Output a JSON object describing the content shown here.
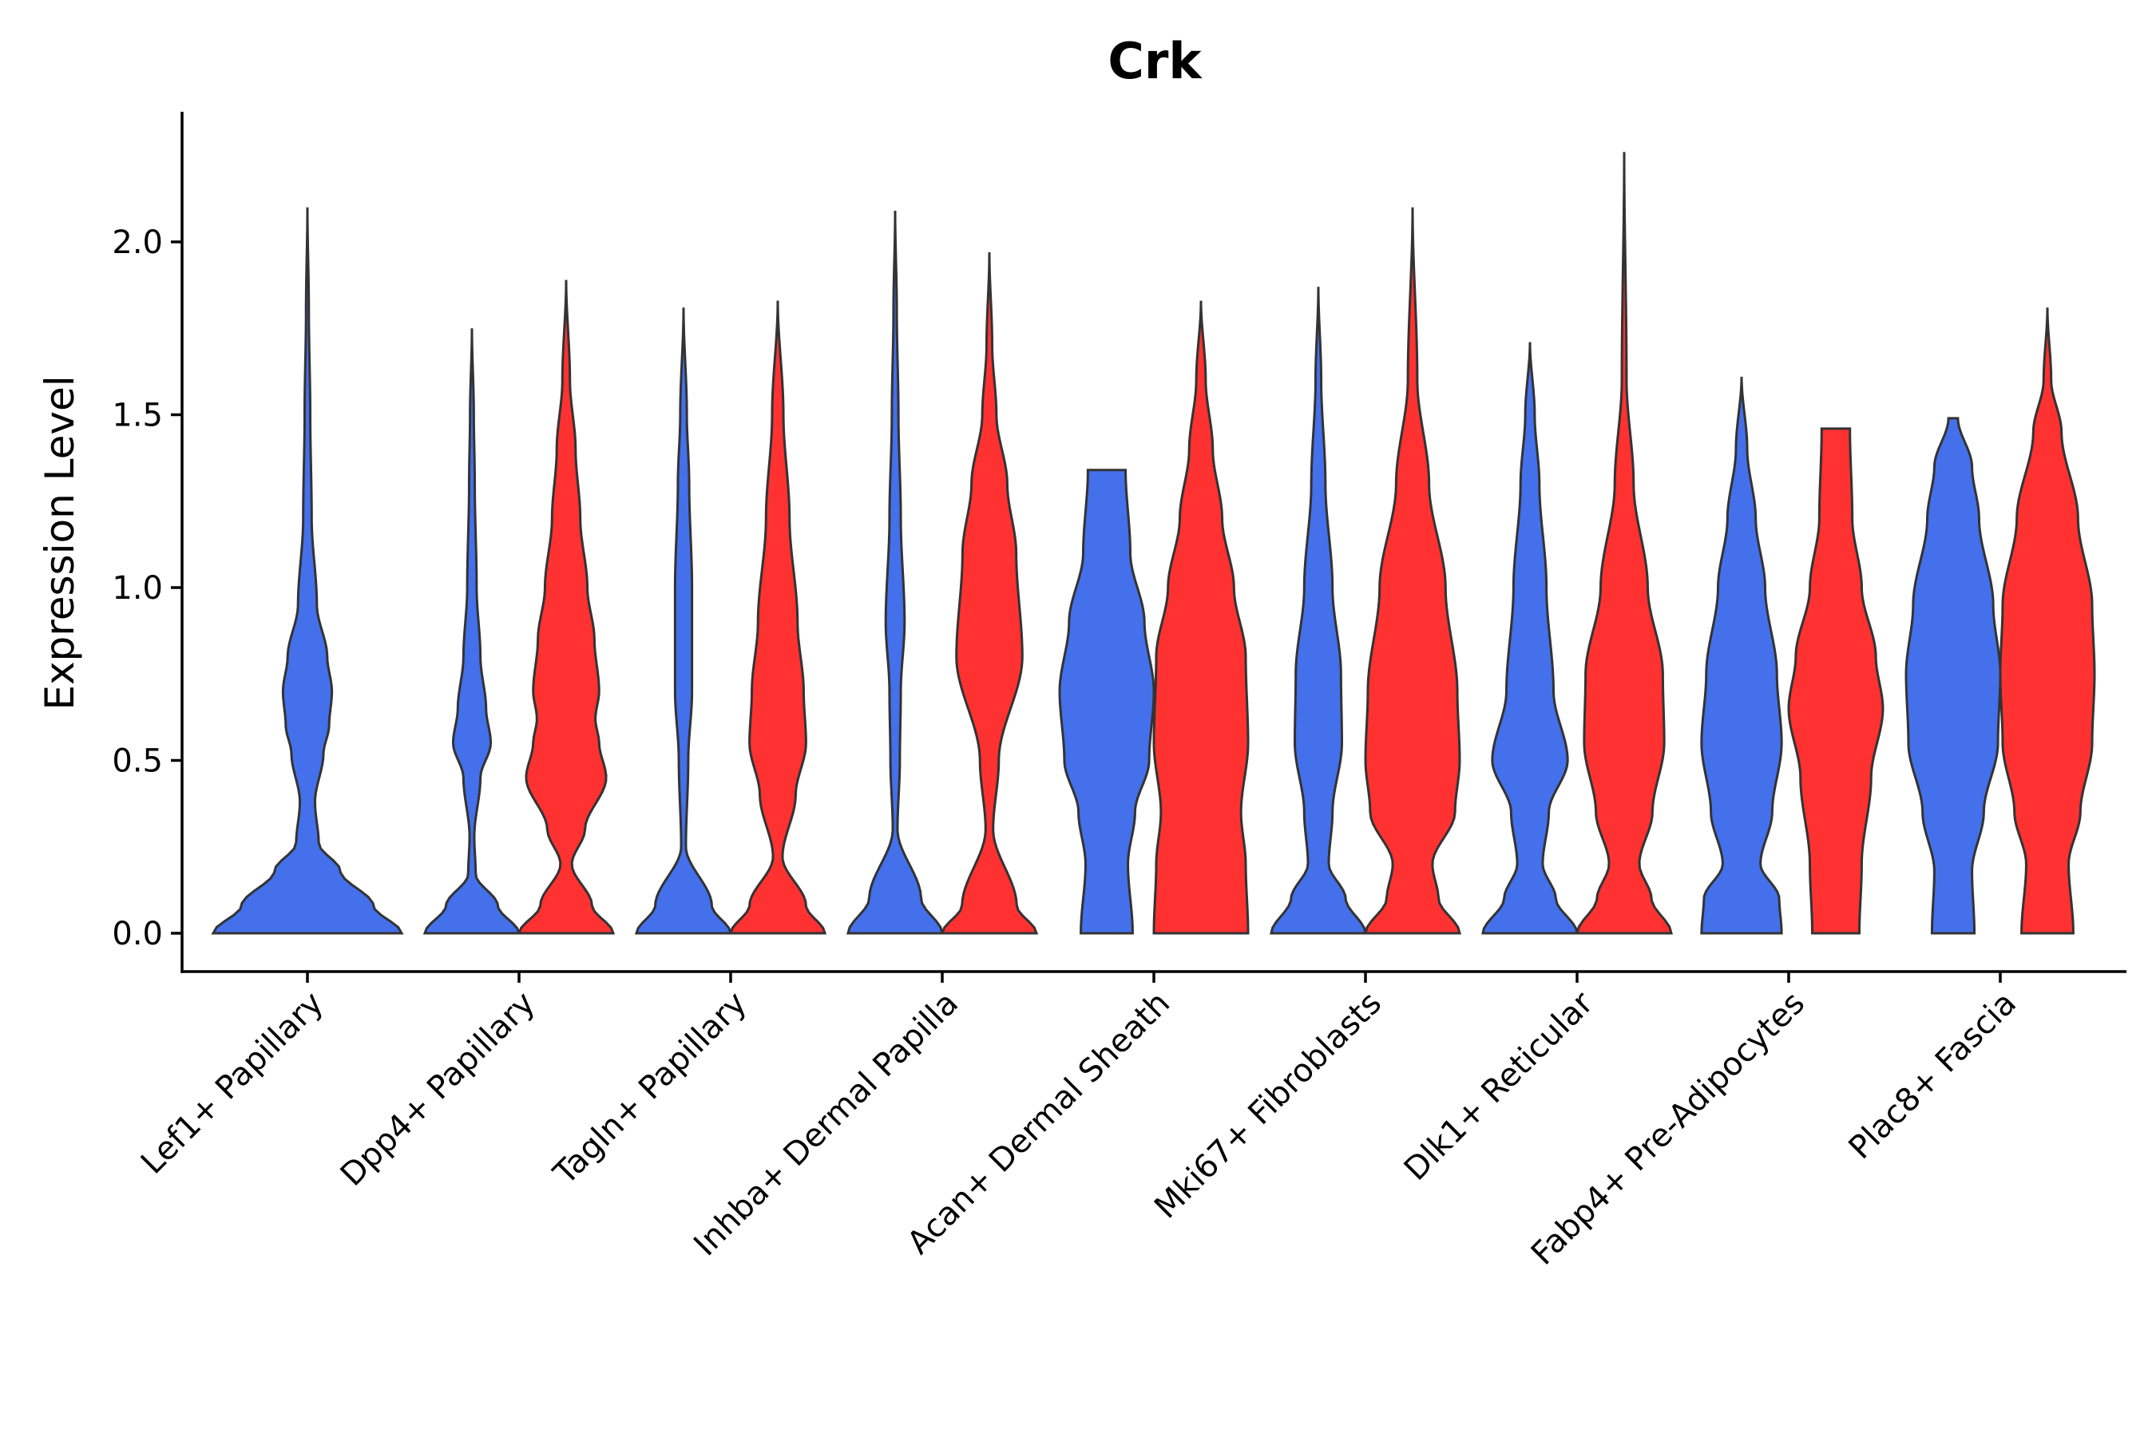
{
  "chart_data": {
    "type": "violin",
    "title": "Crk",
    "xlabel": "",
    "ylabel": "Expression Level",
    "ylim": [
      -0.11,
      2.38
    ],
    "yticks": [
      0.0,
      0.5,
      1.0,
      1.5,
      2.0
    ],
    "ytick_labels": [
      "0.0",
      "0.5",
      "1.0",
      "1.5",
      "2.0"
    ],
    "categories": [
      "Lef1+ Papillary",
      "Dpp4+ Papillary",
      "Tagln+ Papillary",
      "Inhba+ Dermal Papilla",
      "Acan+ Dermal Sheath",
      "Mki67+ Fibroblasts",
      "Dlk1+ Reticular",
      "Fabp4+ Pre-Adipocytes",
      "Plac8+ Fascia"
    ],
    "series_colors": {
      "blue": "#4470EC",
      "red": "#FF3131"
    },
    "violins": [
      {
        "category": "Lef1+ Papillary",
        "split": "blue",
        "max": 2.1,
        "profile": [
          [
            0,
            1
          ],
          [
            0.08,
            0.7
          ],
          [
            0.18,
            0.35
          ],
          [
            0.26,
            0.12
          ],
          [
            0.38,
            0.08
          ],
          [
            0.52,
            0.17
          ],
          [
            0.6,
            0.23
          ],
          [
            0.7,
            0.26
          ],
          [
            0.8,
            0.21
          ],
          [
            0.95,
            0.1
          ],
          [
            1.2,
            0.045
          ],
          [
            1.5,
            0.03
          ],
          [
            1.8,
            0.015
          ],
          [
            2.1,
            0
          ]
        ]
      },
      {
        "category": "Dpp4+ Papillary",
        "split": "blue",
        "max": 1.75,
        "profile": [
          [
            0,
            1
          ],
          [
            0.08,
            0.55
          ],
          [
            0.17,
            0.08
          ],
          [
            0.28,
            0.05
          ],
          [
            0.45,
            0.18
          ],
          [
            0.55,
            0.4
          ],
          [
            0.65,
            0.3
          ],
          [
            0.8,
            0.18
          ],
          [
            1.0,
            0.1
          ],
          [
            1.3,
            0.06
          ],
          [
            1.5,
            0.04
          ],
          [
            1.75,
            0
          ]
        ]
      },
      {
        "category": "Dpp4+ Papillary",
        "split": "red",
        "max": 1.89,
        "profile": [
          [
            0,
            1
          ],
          [
            0.08,
            0.55
          ],
          [
            0.2,
            0.12
          ],
          [
            0.3,
            0.4
          ],
          [
            0.45,
            0.85
          ],
          [
            0.55,
            0.7
          ],
          [
            0.62,
            0.62
          ],
          [
            0.7,
            0.7
          ],
          [
            0.85,
            0.6
          ],
          [
            1.0,
            0.45
          ],
          [
            1.2,
            0.3
          ],
          [
            1.4,
            0.2
          ],
          [
            1.6,
            0.08
          ],
          [
            1.89,
            0
          ]
        ]
      },
      {
        "category": "Tagln+ Papillary",
        "split": "blue",
        "max": 1.81,
        "profile": [
          [
            0,
            1
          ],
          [
            0.08,
            0.6
          ],
          [
            0.25,
            0.05
          ],
          [
            0.5,
            0.1
          ],
          [
            0.7,
            0.18
          ],
          [
            1.0,
            0.18
          ],
          [
            1.3,
            0.12
          ],
          [
            1.5,
            0.07
          ],
          [
            1.81,
            0
          ]
        ]
      },
      {
        "category": "Tagln+ Papillary",
        "split": "red",
        "max": 1.83,
        "profile": [
          [
            0,
            1
          ],
          [
            0.08,
            0.6
          ],
          [
            0.22,
            0.1
          ],
          [
            0.4,
            0.38
          ],
          [
            0.55,
            0.6
          ],
          [
            0.7,
            0.55
          ],
          [
            0.9,
            0.42
          ],
          [
            1.2,
            0.25
          ],
          [
            1.5,
            0.12
          ],
          [
            1.83,
            0
          ]
        ]
      },
      {
        "category": "Inhba+ Dermal Papilla",
        "split": "blue",
        "max": 2.09,
        "profile": [
          [
            0,
            1
          ],
          [
            0.1,
            0.55
          ],
          [
            0.3,
            0.05
          ],
          [
            0.5,
            0.1
          ],
          [
            0.7,
            0.12
          ],
          [
            0.9,
            0.2
          ],
          [
            1.2,
            0.12
          ],
          [
            1.5,
            0.07
          ],
          [
            1.8,
            0.035
          ],
          [
            2.09,
            0
          ]
        ]
      },
      {
        "category": "Inhba+ Dermal Papilla",
        "split": "red",
        "max": 1.97,
        "profile": [
          [
            0,
            1
          ],
          [
            0.08,
            0.58
          ],
          [
            0.3,
            0.08
          ],
          [
            0.5,
            0.2
          ],
          [
            0.8,
            0.7
          ],
          [
            1.1,
            0.57
          ],
          [
            1.3,
            0.38
          ],
          [
            1.5,
            0.15
          ],
          [
            1.7,
            0.06
          ],
          [
            1.97,
            0
          ]
        ]
      },
      {
        "category": "Acan+ Dermal Sheath",
        "split": "blue",
        "max": 1.34,
        "profile": [
          [
            0,
            0.55
          ],
          [
            0.2,
            0.45
          ],
          [
            0.35,
            0.6
          ],
          [
            0.5,
            0.9
          ],
          [
            0.7,
            1.0
          ],
          [
            0.9,
            0.8
          ],
          [
            1.1,
            0.5
          ],
          [
            1.34,
            0.4
          ]
        ]
      },
      {
        "category": "Acan+ Dermal Sheath",
        "split": "red",
        "max": 1.83,
        "profile": [
          [
            0,
            1
          ],
          [
            0.2,
            0.95
          ],
          [
            0.35,
            0.85
          ],
          [
            0.55,
            1.0
          ],
          [
            0.8,
            0.95
          ],
          [
            1.0,
            0.7
          ],
          [
            1.2,
            0.45
          ],
          [
            1.4,
            0.25
          ],
          [
            1.6,
            0.1
          ],
          [
            1.83,
            0
          ]
        ]
      },
      {
        "category": "Mki67+ Fibroblasts",
        "split": "blue",
        "max": 1.87,
        "profile": [
          [
            0,
            1
          ],
          [
            0.1,
            0.58
          ],
          [
            0.2,
            0.22
          ],
          [
            0.35,
            0.3
          ],
          [
            0.55,
            0.5
          ],
          [
            0.75,
            0.48
          ],
          [
            1.0,
            0.3
          ],
          [
            1.3,
            0.15
          ],
          [
            1.6,
            0.06
          ],
          [
            1.87,
            0
          ]
        ]
      },
      {
        "category": "Mki67+ Fibroblasts",
        "split": "red",
        "max": 2.1,
        "profile": [
          [
            0,
            1
          ],
          [
            0.1,
            0.55
          ],
          [
            0.2,
            0.42
          ],
          [
            0.35,
            0.9
          ],
          [
            0.5,
            1.0
          ],
          [
            0.7,
            0.95
          ],
          [
            1.0,
            0.7
          ],
          [
            1.3,
            0.35
          ],
          [
            1.6,
            0.1
          ],
          [
            2.1,
            0
          ]
        ]
      },
      {
        "category": "Dlk1+ Reticular",
        "split": "blue",
        "max": 1.71,
        "profile": [
          [
            0,
            1
          ],
          [
            0.1,
            0.55
          ],
          [
            0.2,
            0.27
          ],
          [
            0.35,
            0.4
          ],
          [
            0.5,
            0.8
          ],
          [
            0.7,
            0.5
          ],
          [
            1.0,
            0.35
          ],
          [
            1.3,
            0.2
          ],
          [
            1.5,
            0.1
          ],
          [
            1.71,
            0
          ]
        ]
      },
      {
        "category": "Dlk1+ Reticular",
        "split": "red",
        "max": 2.26,
        "profile": [
          [
            0,
            1
          ],
          [
            0.1,
            0.58
          ],
          [
            0.2,
            0.32
          ],
          [
            0.35,
            0.6
          ],
          [
            0.55,
            0.85
          ],
          [
            0.75,
            0.82
          ],
          [
            1.0,
            0.5
          ],
          [
            1.3,
            0.2
          ],
          [
            1.6,
            0.05
          ],
          [
            2.26,
            0
          ]
        ]
      },
      {
        "category": "Fabp4+ Pre-Adipocytes",
        "split": "blue",
        "max": 1.61,
        "profile": [
          [
            0,
            0.85
          ],
          [
            0.1,
            0.8
          ],
          [
            0.2,
            0.4
          ],
          [
            0.35,
            0.65
          ],
          [
            0.55,
            0.85
          ],
          [
            0.75,
            0.75
          ],
          [
            1.0,
            0.5
          ],
          [
            1.2,
            0.3
          ],
          [
            1.4,
            0.12
          ],
          [
            1.61,
            0
          ]
        ]
      },
      {
        "category": "Fabp4+ Pre-Adipocytes",
        "split": "red",
        "max": 1.46,
        "profile": [
          [
            0,
            0.5
          ],
          [
            0.2,
            0.55
          ],
          [
            0.45,
            0.75
          ],
          [
            0.65,
            1.0
          ],
          [
            0.8,
            0.85
          ],
          [
            1.0,
            0.55
          ],
          [
            1.2,
            0.35
          ],
          [
            1.46,
            0.3
          ]
        ]
      },
      {
        "category": "Plac8+ Fascia",
        "split": "blue",
        "max": 1.49,
        "profile": [
          [
            0,
            0.45
          ],
          [
            0.18,
            0.4
          ],
          [
            0.35,
            0.65
          ],
          [
            0.55,
            0.95
          ],
          [
            0.75,
            1.0
          ],
          [
            0.95,
            0.85
          ],
          [
            1.2,
            0.55
          ],
          [
            1.35,
            0.4
          ],
          [
            1.49,
            0.1
          ]
        ]
      },
      {
        "category": "Plac8+ Fascia",
        "split": "red",
        "max": 1.81,
        "profile": [
          [
            0,
            0.55
          ],
          [
            0.2,
            0.45
          ],
          [
            0.35,
            0.7
          ],
          [
            0.55,
            0.95
          ],
          [
            0.75,
            1.0
          ],
          [
            0.95,
            0.95
          ],
          [
            1.2,
            0.65
          ],
          [
            1.45,
            0.3
          ],
          [
            1.6,
            0.08
          ],
          [
            1.81,
            0
          ]
        ]
      }
    ]
  }
}
